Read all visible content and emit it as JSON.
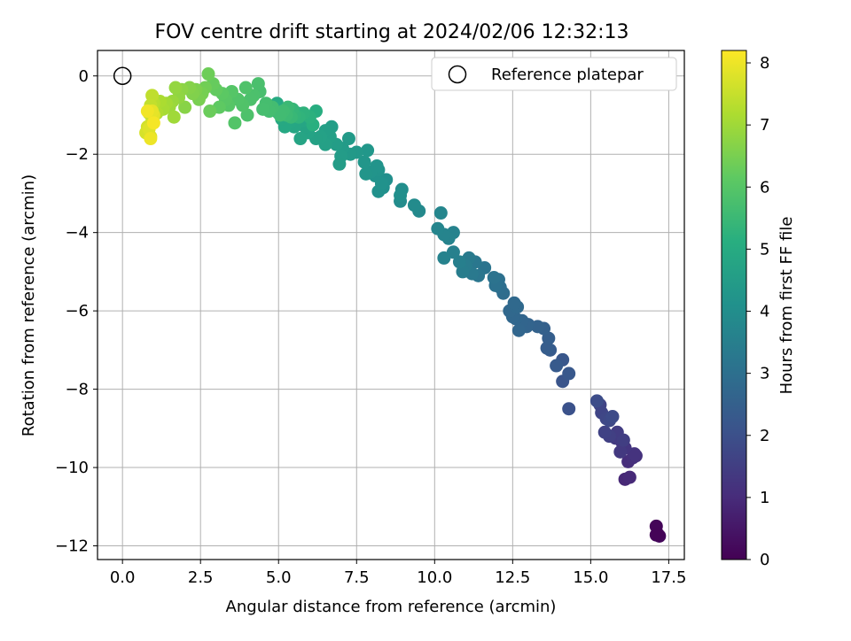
{
  "chart_data": {
    "type": "scatter",
    "title": "FOV centre drift starting at 2024/02/06 12:32:13",
    "xlabel": "Angular distance from reference (arcmin)",
    "ylabel": "Rotation from reference (arcmin)",
    "colorbar_label": "Hours from first FF file",
    "xlim": [
      -0.8,
      18.0
    ],
    "ylim": [
      -12.35,
      0.65
    ],
    "clim": [
      0,
      8.2
    ],
    "xticks": [
      "0.0",
      "2.5",
      "5.0",
      "7.5",
      "10.0",
      "12.5",
      "15.0",
      "17.5"
    ],
    "yticks": [
      "0",
      "−2",
      "−4",
      "−6",
      "−8",
      "−10",
      "−12"
    ],
    "colorbar_ticks": [
      "0",
      "1",
      "2",
      "3",
      "4",
      "5",
      "6",
      "7",
      "8"
    ],
    "grid": true,
    "colormap": "viridis",
    "legend": {
      "placement": "top-right",
      "entries": [
        "Reference platepar"
      ]
    },
    "reference_point": {
      "x": 0,
      "y": 0,
      "label": "Reference platepar"
    },
    "points": [
      [
        17.1,
        -11.5,
        0.1
      ],
      [
        17.1,
        -11.72,
        0.12
      ],
      [
        17.2,
        -11.75,
        0.15
      ],
      [
        17.15,
        -11.7,
        0.08
      ],
      [
        16.1,
        -10.3,
        0.9
      ],
      [
        16.25,
        -10.25,
        0.95
      ],
      [
        16.2,
        -9.85,
        1.05
      ],
      [
        16.35,
        -9.75,
        1.1
      ],
      [
        16.45,
        -9.7,
        1.15
      ],
      [
        16.4,
        -9.65,
        1.2
      ],
      [
        16.1,
        -9.5,
        1.25
      ],
      [
        16.0,
        -9.35,
        1.3
      ],
      [
        15.95,
        -9.6,
        1.35
      ],
      [
        15.8,
        -9.25,
        1.4
      ],
      [
        15.85,
        -9.1,
        1.45
      ],
      [
        16.05,
        -9.3,
        1.5
      ],
      [
        15.6,
        -9.2,
        1.55
      ],
      [
        15.45,
        -9.1,
        1.6
      ],
      [
        15.3,
        -8.4,
        1.65
      ],
      [
        15.35,
        -8.6,
        1.7
      ],
      [
        15.5,
        -8.75,
        1.75
      ],
      [
        15.6,
        -8.8,
        1.8
      ],
      [
        15.7,
        -8.7,
        1.85
      ],
      [
        15.2,
        -8.3,
        1.9
      ],
      [
        14.3,
        -8.5,
        2.05
      ],
      [
        14.1,
        -7.8,
        2.15
      ],
      [
        14.1,
        -7.25,
        2.2
      ],
      [
        14.3,
        -7.6,
        2.25
      ],
      [
        13.9,
        -7.4,
        2.3
      ],
      [
        13.7,
        -7.0,
        2.35
      ],
      [
        13.6,
        -6.95,
        2.4
      ],
      [
        13.65,
        -6.7,
        2.45
      ],
      [
        13.5,
        -6.45,
        2.5
      ],
      [
        13.3,
        -6.4,
        2.55
      ],
      [
        13.0,
        -6.35,
        2.6
      ],
      [
        12.95,
        -6.4,
        2.62
      ],
      [
        12.8,
        -6.25,
        2.65
      ],
      [
        12.7,
        -6.5,
        2.68
      ],
      [
        12.6,
        -6.2,
        2.7
      ],
      [
        12.5,
        -6.15,
        2.72
      ],
      [
        12.4,
        -6.0,
        2.75
      ],
      [
        12.65,
        -5.9,
        2.78
      ],
      [
        12.55,
        -5.8,
        2.8
      ],
      [
        12.2,
        -5.55,
        2.9
      ],
      [
        12.1,
        -5.4,
        2.95
      ],
      [
        12.05,
        -5.2,
        3.0
      ],
      [
        11.95,
        -5.35,
        3.05
      ],
      [
        11.9,
        -5.15,
        3.1
      ],
      [
        11.6,
        -4.9,
        3.15
      ],
      [
        11.4,
        -5.1,
        3.2
      ],
      [
        11.3,
        -4.75,
        3.25
      ],
      [
        11.2,
        -5.05,
        3.3
      ],
      [
        11.1,
        -4.65,
        3.35
      ],
      [
        11.0,
        -4.85,
        3.4
      ],
      [
        10.9,
        -5.0,
        3.45
      ],
      [
        10.8,
        -4.75,
        3.5
      ],
      [
        10.6,
        -4.5,
        3.55
      ],
      [
        10.3,
        -4.65,
        3.6
      ],
      [
        10.6,
        -4.0,
        3.62
      ],
      [
        10.45,
        -4.15,
        3.65
      ],
      [
        10.3,
        -4.05,
        3.68
      ],
      [
        10.1,
        -3.9,
        3.7
      ],
      [
        10.2,
        -3.5,
        3.75
      ],
      [
        9.5,
        -3.45,
        3.85
      ],
      [
        9.35,
        -3.3,
        3.9
      ],
      [
        8.9,
        -3.2,
        3.95
      ],
      [
        8.95,
        -2.9,
        4.0
      ],
      [
        8.9,
        -3.05,
        4.02
      ],
      [
        8.45,
        -2.65,
        4.05
      ],
      [
        8.35,
        -2.85,
        4.08
      ],
      [
        8.2,
        -2.95,
        4.1
      ],
      [
        8.3,
        -2.75,
        4.12
      ],
      [
        8.1,
        -2.55,
        4.15
      ],
      [
        8.2,
        -2.4,
        4.18
      ],
      [
        8.15,
        -2.3,
        4.2
      ],
      [
        7.95,
        -2.45,
        4.22
      ],
      [
        7.8,
        -2.5,
        4.25
      ],
      [
        7.75,
        -2.2,
        4.28
      ],
      [
        7.85,
        -1.9,
        4.3
      ],
      [
        7.5,
        -1.95,
        4.35
      ],
      [
        7.3,
        -2.0,
        4.4
      ],
      [
        7.25,
        -1.6,
        4.42
      ],
      [
        7.05,
        -1.85,
        4.45
      ],
      [
        7.0,
        -2.05,
        4.48
      ],
      [
        6.95,
        -2.25,
        4.5
      ],
      [
        6.85,
        -1.75,
        4.52
      ],
      [
        6.7,
        -1.3,
        4.55
      ],
      [
        6.65,
        -1.55,
        4.58
      ],
      [
        6.5,
        -1.4,
        4.6
      ],
      [
        6.5,
        -1.75,
        4.62
      ],
      [
        6.35,
        -1.55,
        4.65
      ],
      [
        6.2,
        -1.6,
        4.68
      ],
      [
        6.0,
        -1.2,
        4.7
      ],
      [
        5.95,
        -1.45,
        4.72
      ],
      [
        5.85,
        -1.3,
        4.75
      ],
      [
        5.7,
        -1.6,
        4.78
      ],
      [
        5.75,
        -1.15,
        4.8
      ],
      [
        5.6,
        -0.95,
        4.82
      ],
      [
        5.5,
        -1.3,
        4.85
      ],
      [
        5.35,
        -1.2,
        4.88
      ],
      [
        5.2,
        -1.3,
        4.9
      ],
      [
        5.1,
        -1.1,
        4.92
      ],
      [
        5.0,
        -0.95,
        4.95
      ],
      [
        4.95,
        -0.7,
        4.98
      ],
      [
        6.2,
        -0.9,
        5.1
      ],
      [
        6.1,
        -1.25,
        5.15
      ],
      [
        6.0,
        -1.05,
        5.2
      ],
      [
        5.8,
        -0.95,
        5.25
      ],
      [
        5.65,
        -1.05,
        5.3
      ],
      [
        5.5,
        -1.0,
        5.35
      ],
      [
        5.45,
        -0.85,
        5.4
      ],
      [
        5.4,
        -1.05,
        5.45
      ],
      [
        5.3,
        -0.8,
        5.5
      ],
      [
        5.25,
        -1.0,
        5.55
      ],
      [
        5.15,
        -0.9,
        5.6
      ],
      [
        5.05,
        -1.0,
        5.62
      ],
      [
        4.8,
        -0.8,
        5.65
      ],
      [
        4.7,
        -0.9,
        5.68
      ],
      [
        4.6,
        -0.7,
        5.7
      ],
      [
        4.5,
        -0.85,
        5.72
      ],
      [
        4.4,
        -0.4,
        5.75
      ],
      [
        4.35,
        -0.2,
        5.78
      ],
      [
        4.2,
        -0.5,
        5.8
      ],
      [
        4.1,
        -0.6,
        5.82
      ],
      [
        4.0,
        -1.0,
        5.85
      ],
      [
        3.95,
        -0.3,
        5.88
      ],
      [
        3.85,
        -0.75,
        5.9
      ],
      [
        3.7,
        -0.6,
        5.92
      ],
      [
        3.6,
        -1.2,
        5.95
      ],
      [
        3.5,
        -0.4,
        5.98
      ],
      [
        3.4,
        -0.75,
        6.0
      ],
      [
        3.3,
        -0.6,
        6.05
      ],
      [
        3.2,
        -0.45,
        6.1
      ],
      [
        3.1,
        -0.8,
        6.15
      ],
      [
        3.0,
        -0.35,
        6.2
      ],
      [
        2.9,
        -0.2,
        6.25
      ],
      [
        2.8,
        -0.9,
        6.3
      ],
      [
        2.75,
        0.05,
        6.35
      ],
      [
        2.65,
        -0.3,
        6.4
      ],
      [
        2.55,
        -0.45,
        6.45
      ],
      [
        2.45,
        -0.6,
        6.5
      ],
      [
        2.35,
        -0.35,
        6.55
      ],
      [
        2.25,
        -0.45,
        6.6
      ],
      [
        2.15,
        -0.3,
        6.65
      ],
      [
        2.0,
        -0.8,
        6.7
      ],
      [
        1.9,
        -0.35,
        6.75
      ],
      [
        1.8,
        -0.55,
        6.8
      ],
      [
        1.7,
        -0.3,
        6.85
      ],
      [
        1.6,
        -0.65,
        6.9
      ],
      [
        1.5,
        -0.8,
        6.95
      ],
      [
        1.65,
        -1.05,
        7.0
      ],
      [
        1.4,
        -0.7,
        7.05
      ],
      [
        1.3,
        -0.85,
        7.1
      ],
      [
        1.2,
        -0.65,
        7.15
      ],
      [
        1.1,
        -0.95,
        7.2
      ],
      [
        1.0,
        -0.7,
        7.3
      ],
      [
        0.95,
        -0.5,
        7.4
      ],
      [
        0.9,
        -0.75,
        7.45
      ],
      [
        0.85,
        -0.95,
        7.5
      ],
      [
        0.95,
        -1.1,
        7.55
      ],
      [
        0.9,
        -1.25,
        7.6
      ],
      [
        0.8,
        -1.3,
        7.65
      ],
      [
        0.75,
        -1.45,
        7.7
      ],
      [
        0.9,
        -1.55,
        7.75
      ],
      [
        0.85,
        -1.35,
        7.8
      ],
      [
        1.0,
        -1.0,
        7.85
      ],
      [
        0.95,
        -0.9,
        7.9
      ],
      [
        0.9,
        -1.6,
        8.0
      ],
      [
        0.8,
        -0.9,
        8.05
      ],
      [
        1.0,
        -1.2,
        8.1
      ]
    ]
  }
}
